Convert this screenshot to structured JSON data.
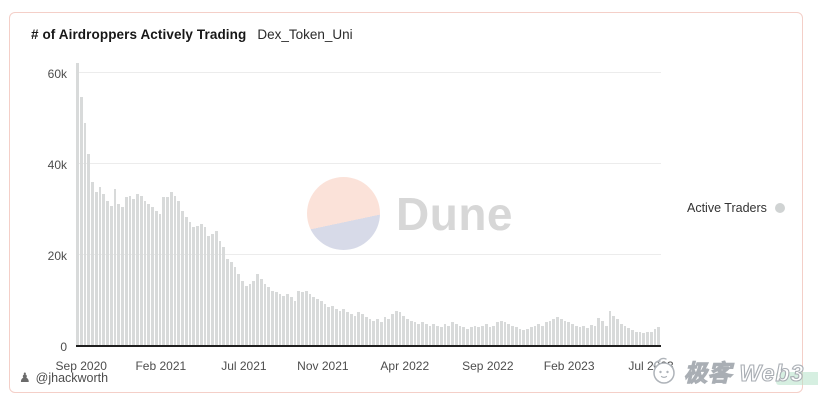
{
  "card": {
    "title": "# of Airdroppers Actively Trading",
    "subtitle": "Dex_Token_Uni",
    "attribution": "@jhackworth"
  },
  "icons": {
    "attribution_glyph": "♟"
  },
  "legend": {
    "label": "Active Traders",
    "marker_color": "#d0d3d3"
  },
  "watermark": {
    "brand": "Dune",
    "circle_top_color": "#fbe2d9",
    "circle_bottom_color": "#d7dae8",
    "text_color": "#d7d7d7"
  },
  "footer_watermark": {
    "text": "极客 Web3"
  },
  "colors": {
    "bar": "#d8dada",
    "grid": "#ececec",
    "axis_line": "#1f1f1f",
    "axis_text": "#4d4d4d",
    "card_border": "#f4cfc8"
  },
  "chart_data": {
    "type": "bar",
    "title": "# of Airdroppers Actively Trading",
    "subtitle": "Dex_Token_Uni",
    "series_name": "Active Traders",
    "frequency": "weekly",
    "x_start": "Sep 2020",
    "x_end": "Jul 2023",
    "ylabel": "",
    "xlabel": "",
    "unit": "thousands",
    "ylim": [
      0,
      60
    ],
    "grid": true,
    "legend_position": "right",
    "y_ticks": [
      {
        "label": "0",
        "value": 0
      },
      {
        "label": "20k",
        "value": 20
      },
      {
        "label": "40k",
        "value": 40
      },
      {
        "label": "60k",
        "value": 60
      }
    ],
    "x_ticks": [
      {
        "label": "Sep 2020",
        "pct": 0.9
      },
      {
        "label": "Feb 2021",
        "pct": 14.5
      },
      {
        "label": "Jul 2021",
        "pct": 28.7
      },
      {
        "label": "Nov 2021",
        "pct": 42.2
      },
      {
        "label": "Apr 2022",
        "pct": 56.2
      },
      {
        "label": "Sep 2022",
        "pct": 70.4
      },
      {
        "label": "Feb 2023",
        "pct": 84.3
      },
      {
        "label": "Jul 2023",
        "pct": 98.3
      }
    ],
    "values_k": [
      62.0,
      54.5,
      48.7,
      42.0,
      35.8,
      33.6,
      34.7,
      33.2,
      31.7,
      30.6,
      34.3,
      31.0,
      30.3,
      32.5,
      32.8,
      32.1,
      33.2,
      32.8,
      31.7,
      31.0,
      30.3,
      29.5,
      28.8,
      32.5,
      32.6,
      33.6,
      32.8,
      31.7,
      29.5,
      28.1,
      27.0,
      25.9,
      26.2,
      26.6,
      25.9,
      24.0,
      24.4,
      25.1,
      22.9,
      21.5,
      18.9,
      18.2,
      17.1,
      15.6,
      14.1,
      13.0,
      13.4,
      14.1,
      15.6,
      14.5,
      13.4,
      12.7,
      11.9,
      11.6,
      11.2,
      10.8,
      11.2,
      10.5,
      9.7,
      11.9,
      11.6,
      11.9,
      11.2,
      10.5,
      10.1,
      9.7,
      9.0,
      8.3,
      8.6,
      7.9,
      7.5,
      7.9,
      7.2,
      6.8,
      6.4,
      7.2,
      6.8,
      6.1,
      5.7,
      5.3,
      5.7,
      5.0,
      6.1,
      5.7,
      6.8,
      7.5,
      7.2,
      6.4,
      5.7,
      5.3,
      5.0,
      4.6,
      5.0,
      4.6,
      4.2,
      4.6,
      4.2,
      3.9,
      4.6,
      4.2,
      5.0,
      4.6,
      4.2,
      3.9,
      3.5,
      3.9,
      4.2,
      3.9,
      4.2,
      4.6,
      3.9,
      4.2,
      5.0,
      5.3,
      5.0,
      4.6,
      4.2,
      3.9,
      3.5,
      3.2,
      3.5,
      3.9,
      4.2,
      4.6,
      4.2,
      5.0,
      5.3,
      5.7,
      6.1,
      5.7,
      5.3,
      5.0,
      4.6,
      4.2,
      3.9,
      4.1,
      3.7,
      4.4,
      4.1,
      5.9,
      5.3,
      4.1,
      7.5,
      6.4,
      5.7,
      4.6,
      4.1,
      3.7,
      3.4,
      2.9,
      2.8,
      2.6,
      2.8,
      2.9,
      3.5,
      3.9
    ]
  }
}
